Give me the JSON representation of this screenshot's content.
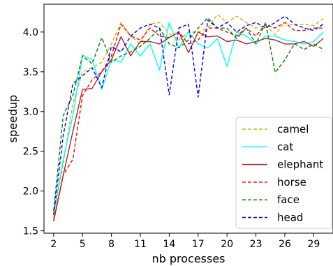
{
  "chart_data": {
    "type": "line",
    "title": "",
    "xlabel": "nb processes",
    "ylabel": "speedup",
    "xlim": [
      1,
      31
    ],
    "ylim": [
      1.47,
      4.35
    ],
    "xticks": [
      2,
      5,
      8,
      11,
      14,
      17,
      20,
      23,
      26,
      29
    ],
    "yticks": [
      1.5,
      2.0,
      2.5,
      3.0,
      3.5,
      4.0
    ],
    "ytick_labels": [
      "1.5",
      "2.0",
      "2.5",
      "3.0",
      "3.5",
      "4.0"
    ],
    "grid": false,
    "legend_position": "lower-right",
    "x": [
      2,
      3,
      4,
      5,
      6,
      7,
      8,
      9,
      10,
      11,
      12,
      13,
      14,
      15,
      16,
      17,
      18,
      19,
      20,
      21,
      22,
      23,
      24,
      25,
      26,
      27,
      28,
      29,
      30
    ],
    "series": [
      {
        "name": "camel",
        "color": "#bfbf00",
        "dash": "dashed",
        "values": [
          1.66,
          2.35,
          3.1,
          3.5,
          3.55,
          3.62,
          3.85,
          4.12,
          3.95,
          3.85,
          4.1,
          4.12,
          3.98,
          3.9,
          4.0,
          4.0,
          4.05,
          4.22,
          4.12,
          4.2,
          4.12,
          4.05,
          4.08,
          3.97,
          4.12,
          4.08,
          4.1,
          4.08,
          4.17
        ]
      },
      {
        "name": "cat",
        "color": "#00ffff",
        "dash": "solid",
        "values": [
          1.7,
          2.4,
          2.95,
          3.71,
          3.65,
          3.28,
          3.65,
          3.62,
          3.85,
          3.7,
          3.85,
          3.52,
          4.12,
          3.8,
          4.0,
          3.85,
          3.8,
          3.92,
          3.57,
          4.0,
          3.95,
          3.85,
          3.95,
          3.95,
          3.9,
          3.88,
          3.85,
          3.88,
          4.0
        ]
      },
      {
        "name": "elephant",
        "color": "#b22222",
        "dash": "solid",
        "values": [
          1.62,
          2.2,
          2.75,
          3.28,
          3.29,
          3.5,
          3.65,
          3.94,
          3.7,
          3.88,
          3.88,
          3.85,
          3.93,
          4.0,
          3.74,
          4.0,
          3.94,
          3.95,
          3.88,
          3.9,
          3.85,
          3.88,
          3.92,
          3.9,
          3.85,
          3.85,
          3.88,
          3.82,
          3.92
        ]
      },
      {
        "name": "horse",
        "color": "#ff0000",
        "dash": "dashed",
        "values": [
          1.62,
          2.2,
          2.4,
          3.2,
          3.4,
          3.5,
          3.7,
          4.1,
          3.95,
          3.9,
          4.05,
          3.95,
          3.93,
          4.0,
          3.85,
          3.9,
          4.05,
          4.05,
          4.0,
          3.95,
          4.05,
          3.95,
          4.1,
          4.05,
          4.12,
          4.02,
          4.02,
          4.05,
          4.05
        ]
      },
      {
        "name": "face",
        "color": "#008000",
        "dash": "dashed",
        "values": [
          1.75,
          2.95,
          3.2,
          3.7,
          3.6,
          3.93,
          3.62,
          3.7,
          3.75,
          3.82,
          3.92,
          4.05,
          3.85,
          3.8,
          3.9,
          4.05,
          4.18,
          4.05,
          4.05,
          3.92,
          4.05,
          3.85,
          4.12,
          3.49,
          3.65,
          3.85,
          3.78,
          3.85,
          3.78
        ]
      },
      {
        "name": "head",
        "color": "#0000ff",
        "dash": "dashed",
        "values": [
          1.7,
          2.7,
          3.35,
          3.45,
          3.55,
          3.3,
          3.82,
          3.75,
          3.95,
          4.05,
          4.1,
          4.05,
          3.21,
          4.05,
          4.1,
          3.18,
          4.15,
          4.05,
          4.12,
          4.0,
          4.08,
          4.12,
          4.05,
          4.12,
          4.2,
          4.1,
          4.05,
          4.02,
          4.1
        ]
      }
    ]
  }
}
